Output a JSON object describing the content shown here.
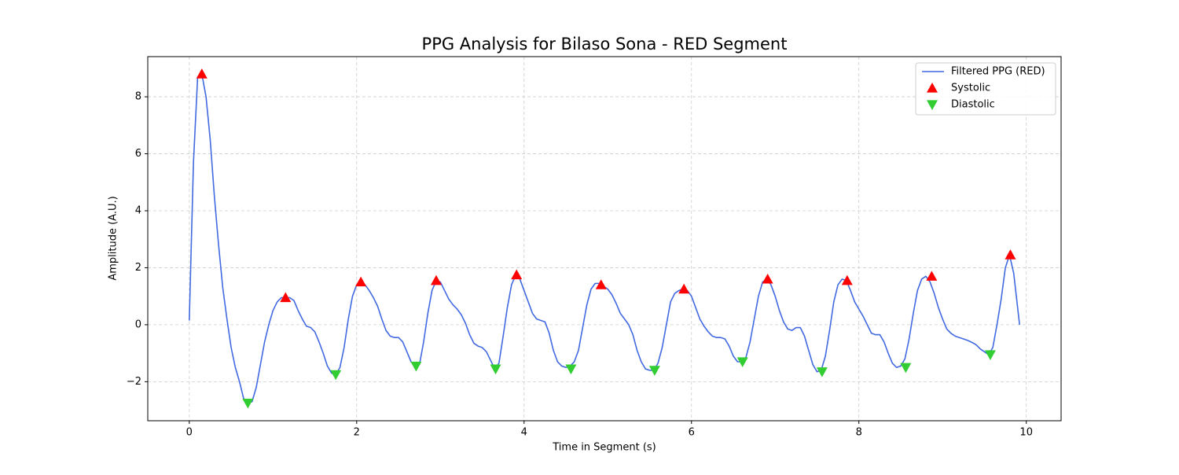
{
  "chart_data": {
    "type": "line",
    "title": "PPG Analysis for Bilaso Sona - RED Segment",
    "xlabel": "Time in Segment (s)",
    "ylabel": "Amplitude (A.U.)",
    "xlim": [
      -0.496,
      10.416
    ],
    "ylim": [
      -3.37,
      9.41
    ],
    "xticks": [
      0,
      2,
      4,
      6,
      8,
      10
    ],
    "yticks": [
      {
        "value": -2,
        "label": "−2"
      },
      0,
      2,
      4,
      6,
      8
    ],
    "grid": true,
    "legend": "upper right",
    "series": [
      {
        "name": "Filtered PPG (RED)",
        "color": "#4169e1",
        "marker": "line",
        "x": [
          0,
          0.05,
          0.1,
          0.15,
          0.2,
          0.25,
          0.3,
          0.35,
          0.4,
          0.45,
          0.5,
          0.55,
          0.6,
          0.65,
          0.7,
          0.75,
          0.8,
          0.85,
          0.9,
          0.95,
          1.0,
          1.05,
          1.1,
          1.15,
          1.2,
          1.25,
          1.3,
          1.35,
          1.4,
          1.45,
          1.5,
          1.55,
          1.6,
          1.65,
          1.7,
          1.75,
          1.8,
          1.85,
          1.9,
          1.95,
          2.0,
          2.05,
          2.1,
          2.15,
          2.2,
          2.25,
          2.3,
          2.35,
          2.4,
          2.45,
          2.5,
          2.55,
          2.6,
          2.65,
          2.7,
          2.75,
          2.8,
          2.85,
          2.9,
          2.95,
          3.0,
          3.05,
          3.1,
          3.15,
          3.2,
          3.25,
          3.3,
          3.35,
          3.4,
          3.45,
          3.5,
          3.55,
          3.6,
          3.65,
          3.7,
          3.75,
          3.8,
          3.85,
          3.9,
          3.95,
          4.0,
          4.05,
          4.1,
          4.15,
          4.2,
          4.25,
          4.3,
          4.35,
          4.4,
          4.45,
          4.5,
          4.55,
          4.6,
          4.65,
          4.7,
          4.75,
          4.8,
          4.85,
          4.9,
          4.95,
          5.0,
          5.05,
          5.1,
          5.15,
          5.2,
          5.25,
          5.3,
          5.35,
          5.4,
          5.45,
          5.5,
          5.55,
          5.6,
          5.65,
          5.7,
          5.75,
          5.8,
          5.85,
          5.9,
          5.95,
          6.0,
          6.05,
          6.1,
          6.15,
          6.2,
          6.25,
          6.3,
          6.35,
          6.4,
          6.45,
          6.5,
          6.55,
          6.6,
          6.65,
          6.7,
          6.75,
          6.8,
          6.85,
          6.9,
          6.95,
          7.0,
          7.05,
          7.1,
          7.15,
          7.2,
          7.25,
          7.3,
          7.35,
          7.4,
          7.45,
          7.5,
          7.55,
          7.6,
          7.65,
          7.7,
          7.75,
          7.8,
          7.85,
          7.9,
          7.95,
          8.0,
          8.05,
          8.1,
          8.15,
          8.2,
          8.25,
          8.3,
          8.35,
          8.4,
          8.45,
          8.5,
          8.55,
          8.6,
          8.65,
          8.7,
          8.75,
          8.8,
          8.85,
          8.9,
          8.95,
          9.0,
          9.05,
          9.1,
          9.15,
          9.2,
          9.25,
          9.3,
          9.35,
          9.4,
          9.45,
          9.5,
          9.55,
          9.6,
          9.65,
          9.7,
          9.75,
          9.8,
          9.85,
          9.92
        ],
        "values": [
          0.15,
          5.7,
          8.7,
          8.8,
          8.0,
          6.5,
          4.5,
          2.8,
          1.3,
          0.2,
          -0.8,
          -1.5,
          -2.0,
          -2.6,
          -2.75,
          -2.7,
          -2.2,
          -1.4,
          -0.6,
          0.0,
          0.5,
          0.8,
          0.95,
          0.95,
          0.95,
          0.85,
          0.5,
          0.2,
          -0.05,
          -0.1,
          -0.25,
          -0.6,
          -1.0,
          -1.45,
          -1.7,
          -1.75,
          -1.5,
          -0.8,
          0.2,
          1.0,
          1.4,
          1.5,
          1.4,
          1.2,
          0.95,
          0.65,
          0.2,
          -0.2,
          -0.4,
          -0.45,
          -0.45,
          -0.6,
          -0.95,
          -1.3,
          -1.45,
          -1.4,
          -0.6,
          0.4,
          1.2,
          1.55,
          1.5,
          1.2,
          0.9,
          0.7,
          0.55,
          0.35,
          0.05,
          -0.35,
          -0.65,
          -0.75,
          -0.8,
          -0.95,
          -1.25,
          -1.55,
          -1.35,
          -0.4,
          0.6,
          1.4,
          1.75,
          1.6,
          1.2,
          0.8,
          0.4,
          0.2,
          0.15,
          0.1,
          -0.3,
          -0.9,
          -1.3,
          -1.45,
          -1.5,
          -1.45,
          -1.3,
          -0.9,
          -0.1,
          0.7,
          1.25,
          1.45,
          1.45,
          1.35,
          1.25,
          1.05,
          0.75,
          0.4,
          0.2,
          0.0,
          -0.35,
          -0.9,
          -1.3,
          -1.55,
          -1.6,
          -1.6,
          -1.35,
          -0.8,
          0.0,
          0.8,
          1.1,
          1.2,
          1.25,
          1.2,
          1.0,
          0.6,
          0.2,
          -0.05,
          -0.25,
          -0.4,
          -0.45,
          -0.45,
          -0.5,
          -0.75,
          -1.1,
          -1.3,
          -1.3,
          -1.15,
          -0.6,
          0.2,
          1.0,
          1.5,
          1.6,
          1.4,
          1.0,
          0.5,
          0.1,
          -0.15,
          -0.2,
          -0.1,
          -0.1,
          -0.4,
          -0.9,
          -1.4,
          -1.65,
          -1.6,
          -1.1,
          -0.2,
          0.8,
          1.4,
          1.6,
          1.55,
          1.2,
          0.8,
          0.55,
          0.3,
          0.0,
          -0.3,
          -0.35,
          -0.35,
          -0.6,
          -1.0,
          -1.35,
          -1.5,
          -1.45,
          -1.2,
          -0.5,
          0.4,
          1.2,
          1.6,
          1.7,
          1.5,
          1.1,
          0.6,
          0.2,
          -0.15,
          -0.3,
          -0.4,
          -0.45,
          -0.5,
          -0.55,
          -0.62,
          -0.7,
          -0.85,
          -0.95,
          -1.05,
          -0.8,
          0.0,
          0.9,
          2.0,
          2.45,
          1.8,
          0.0
        ]
      },
      {
        "name": "Systolic",
        "color": "#ff0000",
        "marker": "up",
        "x": [
          0.15,
          1.15,
          2.05,
          2.95,
          3.91,
          4.92,
          5.91,
          6.91,
          7.86,
          8.87,
          9.81
        ],
        "values": [
          8.8,
          0.95,
          1.5,
          1.55,
          1.75,
          1.4,
          1.25,
          1.6,
          1.55,
          1.7,
          2.45
        ]
      },
      {
        "name": "Diastolic",
        "color": "#32cd32",
        "marker": "down",
        "x": [
          0.7,
          1.75,
          2.71,
          3.66,
          4.56,
          5.56,
          6.61,
          7.56,
          8.56,
          9.57
        ],
        "values": [
          -2.75,
          -1.75,
          -1.45,
          -1.55,
          -1.55,
          -1.6,
          -1.3,
          -1.65,
          -1.5,
          -1.05
        ]
      }
    ]
  }
}
